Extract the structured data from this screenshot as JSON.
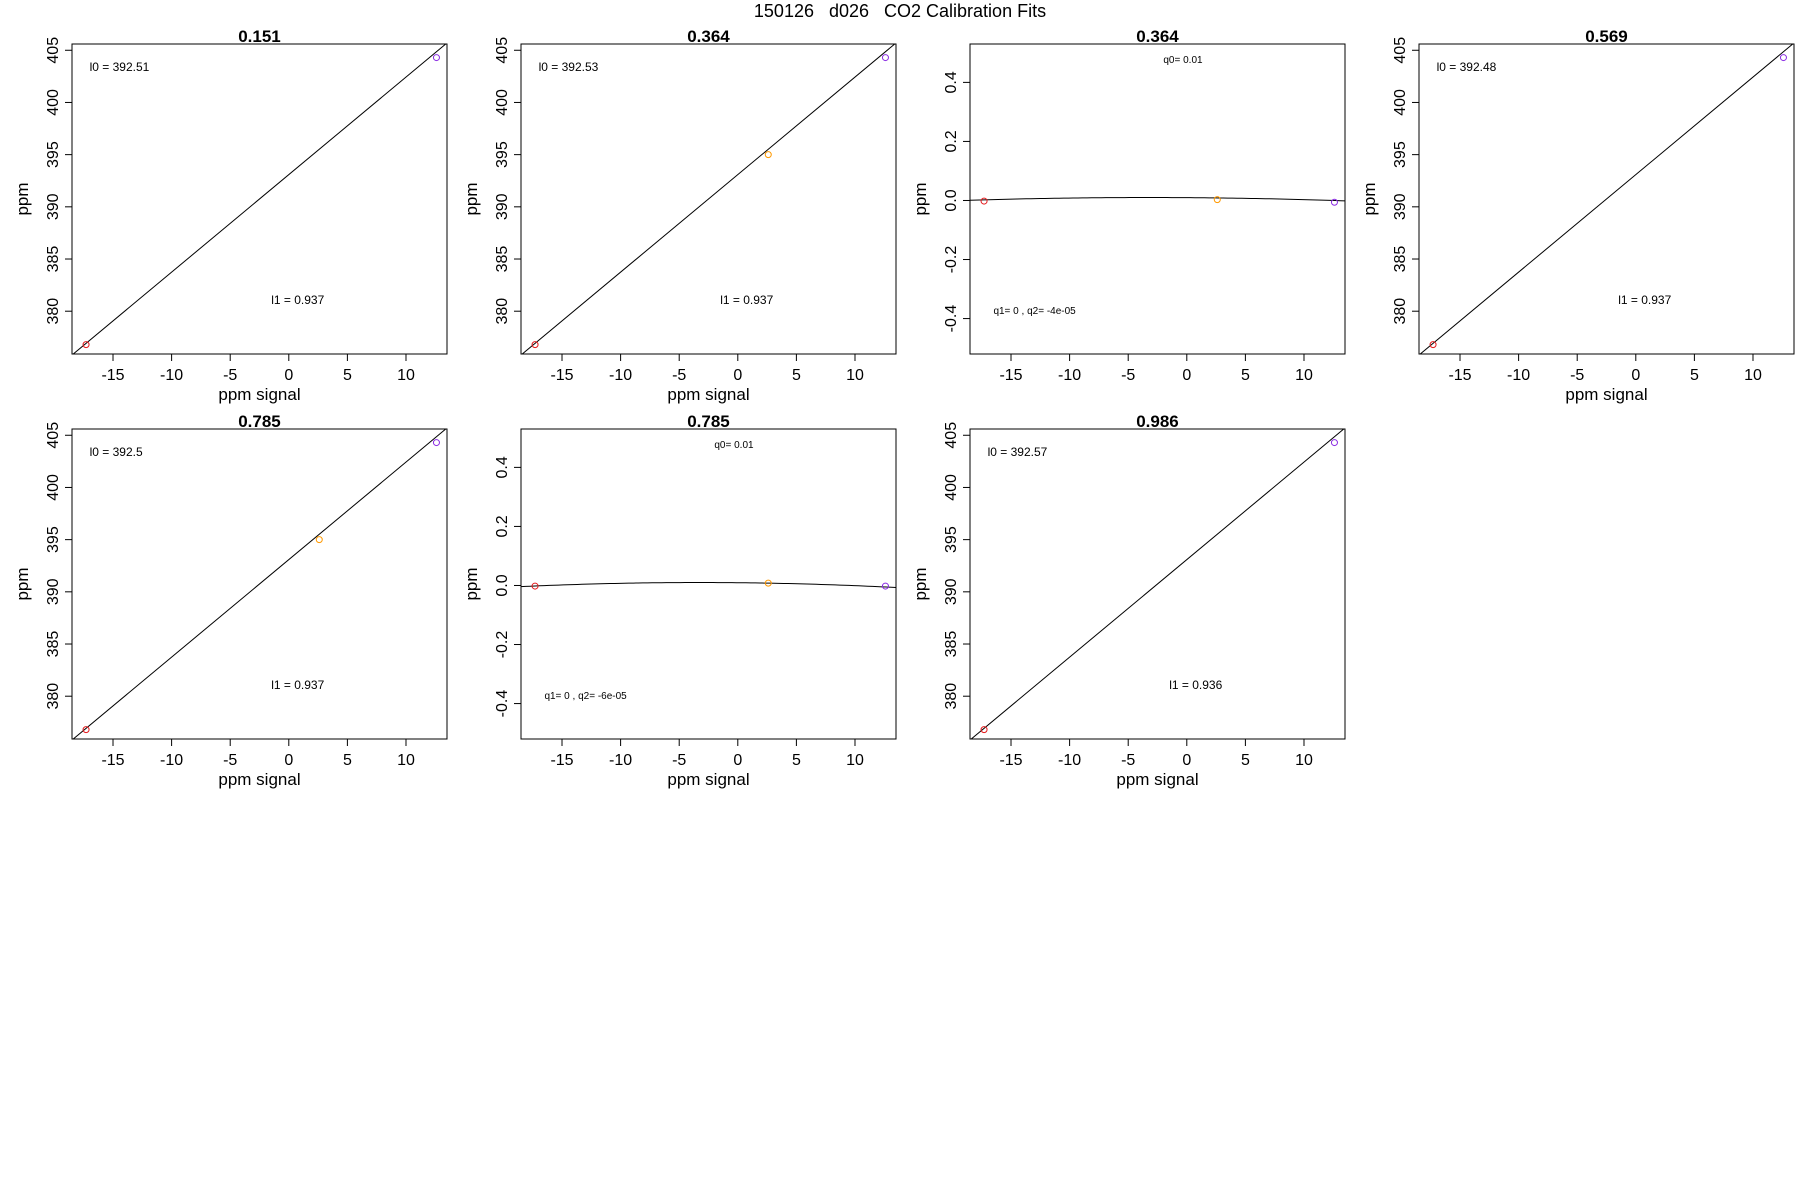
{
  "page_title": "150126   d026   CO2 Calibration Fits",
  "colors": {
    "low": "#e41a1c",
    "mid": "#ff9900",
    "high": "#8a2be2",
    "line": "#000000",
    "axis": "#000000"
  },
  "chart_data": [
    {
      "type": "scatter",
      "fit": "linear",
      "title": "0.151",
      "xlabel": "ppm signal",
      "ylabel": "ppm",
      "xlim": [
        -18.5,
        13.5
      ],
      "ylim": [
        375.9,
        405.6
      ],
      "xticks": [
        -15,
        -10,
        -5,
        0,
        5,
        10
      ],
      "yticks": [
        380,
        385,
        390,
        395,
        400,
        405
      ],
      "points": [
        {
          "x": -17.3,
          "y": 376.8,
          "color": "low"
        },
        {
          "x": 12.6,
          "y": 404.3,
          "color": "high"
        }
      ],
      "line": [
        [
          -18.5,
          375.8
        ],
        [
          13.5,
          405.7
        ]
      ],
      "annotations": [
        {
          "text": "l0 =  392.51",
          "x": -17,
          "y": 403.0
        },
        {
          "text": "l1 =  0.937",
          "x": -1.5,
          "y": 380.7
        }
      ]
    },
    {
      "type": "scatter",
      "fit": "linear",
      "title": "0.364",
      "xlabel": "ppm signal",
      "ylabel": "ppm",
      "xlim": [
        -18.5,
        13.5
      ],
      "ylim": [
        375.9,
        405.6
      ],
      "xticks": [
        -15,
        -10,
        -5,
        0,
        5,
        10
      ],
      "yticks": [
        380,
        385,
        390,
        395,
        400,
        405
      ],
      "points": [
        {
          "x": -17.3,
          "y": 376.8,
          "color": "low"
        },
        {
          "x": 2.6,
          "y": 395.0,
          "color": "mid"
        },
        {
          "x": 12.6,
          "y": 404.3,
          "color": "high"
        }
      ],
      "line": [
        [
          -18.5,
          375.8
        ],
        [
          13.5,
          405.7
        ]
      ],
      "annotations": [
        {
          "text": "l0 =  392.53",
          "x": -17,
          "y": 403.0
        },
        {
          "text": "l1 =  0.937",
          "x": -1.5,
          "y": 380.7
        }
      ]
    },
    {
      "type": "scatter",
      "fit": "quadratic",
      "title": "0.364",
      "xlabel": "",
      "ylabel": "ppm",
      "xlim": [
        -18.5,
        13.5
      ],
      "ylim": [
        -0.52,
        0.53
      ],
      "xticks": [
        -15,
        -10,
        -5,
        0,
        5,
        10
      ],
      "yticks": [
        -0.4,
        -0.2,
        0.0,
        0.2,
        0.4
      ],
      "ytick_labels": [
        "-0.4",
        "-0.2",
        "0.0",
        "0.2",
        "0.4"
      ],
      "points": [
        {
          "x": -17.3,
          "y": -0.002,
          "color": "low"
        },
        {
          "x": 2.6,
          "y": 0.003,
          "color": "mid"
        },
        {
          "x": 12.6,
          "y": -0.006,
          "color": "high"
        }
      ],
      "curve": {
        "q0": 0.01,
        "q1": 0,
        "q2": -4e-05,
        "xc": -3.3
      },
      "annotations": [
        {
          "text": "q0= 0.01",
          "x": -2,
          "y": 0.465,
          "small": true
        },
        {
          "text": "q1= 0 ,  q2= -4e-05",
          "x": -16.5,
          "y": -0.385,
          "small": true
        }
      ]
    },
    {
      "type": "scatter",
      "fit": "linear",
      "title": "0.569",
      "xlabel": "ppm signal",
      "ylabel": "ppm",
      "xlim": [
        -18.5,
        13.5
      ],
      "ylim": [
        375.9,
        405.6
      ],
      "xticks": [
        -15,
        -10,
        -5,
        0,
        5,
        10
      ],
      "yticks": [
        380,
        385,
        390,
        395,
        400,
        405
      ],
      "points": [
        {
          "x": -17.3,
          "y": 376.8,
          "color": "low"
        },
        {
          "x": 12.6,
          "y": 404.3,
          "color": "high"
        }
      ],
      "line": [
        [
          -18.5,
          375.8
        ],
        [
          13.5,
          405.7
        ]
      ],
      "annotations": [
        {
          "text": "l0 =  392.48",
          "x": -17,
          "y": 403.0
        },
        {
          "text": "l1 =  0.937",
          "x": -1.5,
          "y": 380.7
        }
      ]
    },
    {
      "type": "scatter",
      "fit": "linear",
      "title": "0.785",
      "xlabel": "ppm signal",
      "ylabel": "ppm",
      "xlim": [
        -18.5,
        13.5
      ],
      "ylim": [
        375.9,
        405.6
      ],
      "xticks": [
        -15,
        -10,
        -5,
        0,
        5,
        10
      ],
      "yticks": [
        380,
        385,
        390,
        395,
        400,
        405
      ],
      "points": [
        {
          "x": -17.3,
          "y": 376.8,
          "color": "low"
        },
        {
          "x": 2.6,
          "y": 395.0,
          "color": "mid"
        },
        {
          "x": 12.6,
          "y": 404.3,
          "color": "high"
        }
      ],
      "line": [
        [
          -18.5,
          375.8
        ],
        [
          13.5,
          405.7
        ]
      ],
      "annotations": [
        {
          "text": "l0 =  392.5",
          "x": -17,
          "y": 403.0
        },
        {
          "text": "l1 =  0.937",
          "x": -1.5,
          "y": 380.7
        }
      ]
    },
    {
      "type": "scatter",
      "fit": "quadratic",
      "title": "0.785",
      "xlabel": "ppm signal",
      "ylabel": "ppm",
      "xlim": [
        -18.5,
        13.5
      ],
      "ylim": [
        -0.52,
        0.53
      ],
      "xticks": [
        -15,
        -10,
        -5,
        0,
        5,
        10
      ],
      "yticks": [
        -0.4,
        -0.2,
        0.0,
        0.2,
        0.4
      ],
      "ytick_labels": [
        "-0.4",
        "-0.2",
        "0.0",
        "0.2",
        "0.4"
      ],
      "points": [
        {
          "x": -17.3,
          "y": -0.002,
          "color": "low"
        },
        {
          "x": 2.6,
          "y": 0.008,
          "color": "mid"
        },
        {
          "x": 12.6,
          "y": -0.002,
          "color": "high"
        }
      ],
      "curve": {
        "q0": 0.01,
        "q1": 0,
        "q2": -6e-05,
        "xc": -3.3
      },
      "annotations": [
        {
          "text": "q0= 0.01",
          "x": -2,
          "y": 0.465,
          "small": true
        },
        {
          "text": "q1= 0 ,  q2= -6e-05",
          "x": -16.5,
          "y": -0.385,
          "small": true
        }
      ]
    },
    {
      "type": "scatter",
      "fit": "linear",
      "title": "0.986",
      "xlabel": "ppm signal",
      "ylabel": "ppm",
      "xlim": [
        -18.5,
        13.5
      ],
      "ylim": [
        375.9,
        405.6
      ],
      "xticks": [
        -15,
        -10,
        -5,
        0,
        5,
        10
      ],
      "yticks": [
        380,
        385,
        390,
        395,
        400,
        405
      ],
      "points": [
        {
          "x": -17.3,
          "y": 376.8,
          "color": "low"
        },
        {
          "x": 12.6,
          "y": 404.3,
          "color": "high"
        }
      ],
      "line": [
        [
          -18.5,
          375.8
        ],
        [
          13.5,
          405.7
        ]
      ],
      "annotations": [
        {
          "text": "l0 =  392.57",
          "x": -17,
          "y": 403.0
        },
        {
          "text": "l1 =  0.936",
          "x": -1.5,
          "y": 380.7
        }
      ]
    }
  ]
}
